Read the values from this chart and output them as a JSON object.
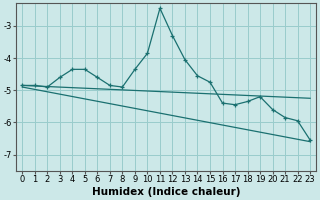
{
  "xlabel": "Humidex (Indice chaleur)",
  "bg_color": "#cce8e8",
  "grid_color": "#99cccc",
  "line_color": "#1a7070",
  "xlim": [
    -0.5,
    23.5
  ],
  "ylim": [
    -7.5,
    -2.3
  ],
  "yticks": [
    -7,
    -6,
    -5,
    -4,
    -3
  ],
  "xticks": [
    0,
    1,
    2,
    3,
    4,
    5,
    6,
    7,
    8,
    9,
    10,
    11,
    12,
    13,
    14,
    15,
    16,
    17,
    18,
    19,
    20,
    21,
    22,
    23
  ],
  "series1_x": [
    0,
    1,
    2,
    3,
    4,
    5,
    6,
    7,
    8,
    9,
    10,
    11,
    12,
    13,
    14,
    15,
    16,
    17,
    18,
    19,
    20,
    21,
    22,
    23
  ],
  "series1_y": [
    -4.85,
    -4.85,
    -4.9,
    -4.6,
    -4.35,
    -4.35,
    -4.6,
    -4.85,
    -4.9,
    -4.35,
    -3.85,
    -2.45,
    -3.3,
    -4.05,
    -4.55,
    -4.75,
    -5.4,
    -5.45,
    -5.35,
    -5.2,
    -5.6,
    -5.85,
    -5.95,
    -6.55
  ],
  "series2_x": [
    0,
    23
  ],
  "series2_y": [
    -4.85,
    -5.25
  ],
  "series3_x": [
    0,
    23
  ],
  "series3_y": [
    -4.9,
    -6.6
  ],
  "tickfont_size": 6,
  "labelfont_size": 7.5
}
